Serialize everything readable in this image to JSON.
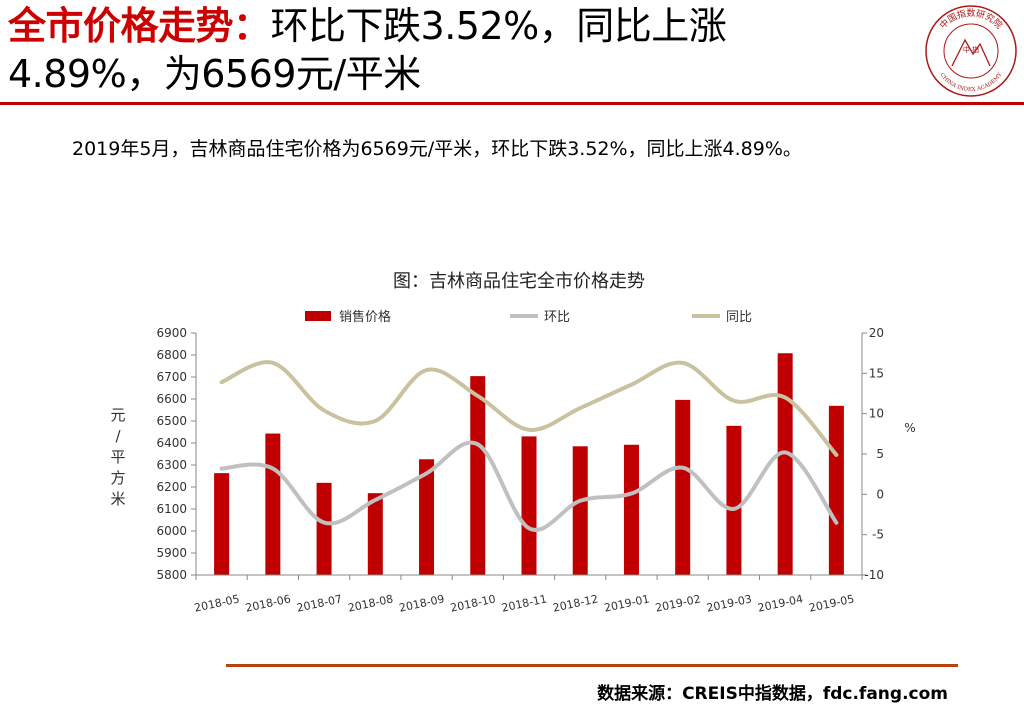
{
  "header": {
    "title_highlight": "全市价格走势：",
    "title_line1_rest": "环比下跌3.52%，同比上涨",
    "title_line2": "4.89%，为6569元/平米",
    "logo_center_text": "中 指",
    "logo_text_top": "中国指数研究院",
    "logo_text_bottom": "CHINA INDEX ACADEMY",
    "accent_color": "#c00000"
  },
  "summary": "2019年5月，吉林商品住宅价格为6569元/平米，环比下跌3.52%，同比上涨4.89%。",
  "chart_data": {
    "type": "bar",
    "title": "图：吉林商品住宅全市价格走势",
    "categories": [
      "2018-05",
      "2018-06",
      "2018-07",
      "2018-08",
      "2018-09",
      "2018-10",
      "2018-11",
      "2018-12",
      "2019-01",
      "2019-02",
      "2019-03",
      "2019-04",
      "2019-05"
    ],
    "series": [
      {
        "name": "销售价格",
        "type": "bar",
        "axis": "left",
        "color": "#c00000",
        "values": [
          6263,
          6443,
          6219,
          6172,
          6326,
          6704,
          6430,
          6385,
          6392,
          6596,
          6478,
          6808,
          6569
        ]
      },
      {
        "name": "环比",
        "type": "line",
        "axis": "right",
        "color": "#c0c0c0",
        "values": [
          3.2,
          3.2,
          -3.5,
          -0.7,
          2.6,
          6.2,
          -4.2,
          -0.8,
          0.1,
          3.3,
          -1.8,
          5.2,
          -3.52
        ]
      },
      {
        "name": "同比",
        "type": "line",
        "axis": "right",
        "color": "#c9c2a0",
        "values": [
          13.9,
          16.3,
          10.4,
          9.1,
          15.4,
          12.2,
          8.0,
          10.7,
          13.6,
          16.3,
          11.6,
          12.0,
          4.89
        ]
      }
    ],
    "y_left": {
      "min": 5800,
      "max": 6900,
      "step": 100,
      "label": "元/平方米"
    },
    "y_right": {
      "min": -10,
      "max": 20,
      "step": 5,
      "label": "%"
    },
    "legend_position": "top",
    "grid": false
  },
  "footer": {
    "source": "数据来源：CREIS中指数据，fdc.fang.com",
    "rule_color": "#b8420f"
  }
}
